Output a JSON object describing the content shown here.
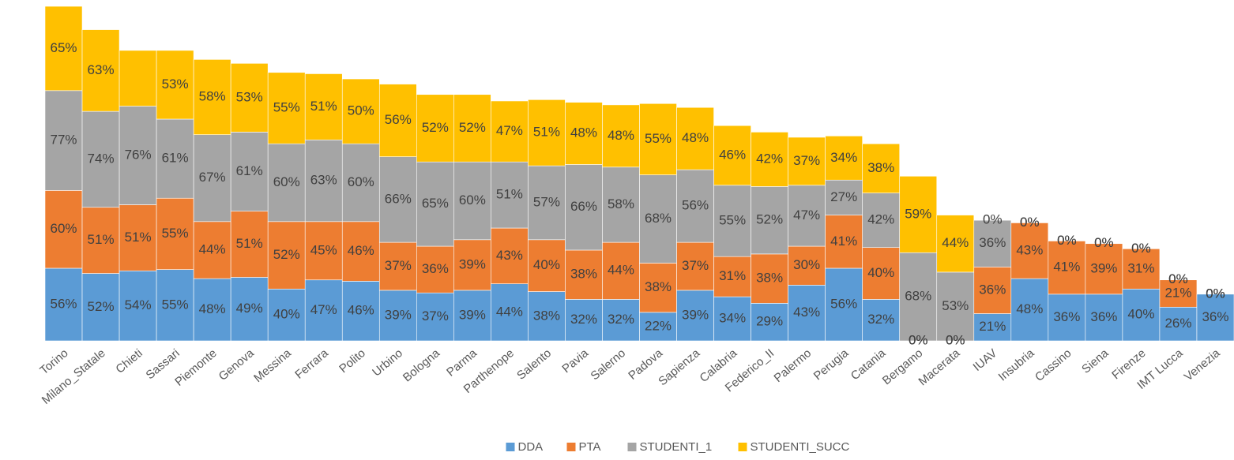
{
  "chart_data": {
    "type": "bar",
    "stacked": true,
    "categories": [
      "Torino",
      "Milano_Statale",
      "Chieti",
      "Sassari",
      "Piemonte",
      "Genova",
      "Messina",
      "Ferrara",
      "Polito",
      "Urbino",
      "Bologna",
      "Parma",
      "Parthenope",
      "Salento",
      "Pavia",
      "Salerno",
      "Padova",
      "Sapienza",
      "Calabria",
      "Federico_II",
      "Palermo",
      "Perugia",
      "Catania",
      "Bergamo",
      "Macerata",
      "IUAV",
      "Insubria",
      "Cassino",
      "Siena",
      "Firenze",
      "IMT Lucca",
      "Venezia"
    ],
    "series": [
      {
        "name": "DDA",
        "color": "#5b9bd5",
        "values": [
          56,
          52,
          54,
          55,
          48,
          49,
          40,
          47,
          46,
          39,
          37,
          39,
          44,
          38,
          32,
          32,
          22,
          39,
          34,
          29,
          43,
          56,
          32,
          0,
          0,
          21,
          48,
          36,
          36,
          40,
          26,
          36
        ],
        "value_labels": [
          "56%",
          "52%",
          "54%",
          "55%",
          "48%",
          "49%",
          "40%",
          "47%",
          "46%",
          "39%",
          "37%",
          "39%",
          "44%",
          "38%",
          "32%",
          "32%",
          "22%",
          "39%",
          "34%",
          "29%",
          "43%",
          "56%",
          "32%",
          "0%",
          "0%",
          "21%",
          "48%",
          "36%",
          "36%",
          "40%",
          "26%",
          "36%"
        ]
      },
      {
        "name": "PTA",
        "color": "#ed7d31",
        "values": [
          60,
          51,
          51,
          55,
          44,
          51,
          52,
          45,
          46,
          37,
          36,
          39,
          43,
          40,
          38,
          44,
          38,
          37,
          31,
          38,
          30,
          41,
          40,
          0,
          0,
          36,
          43,
          41,
          39,
          31,
          21,
          0
        ],
        "value_labels": [
          "60%",
          "51%",
          "51%",
          "55%",
          "44%",
          "51%",
          "52%",
          "45%",
          "46%",
          "37%",
          "36%",
          "39%",
          "43%",
          "40%",
          "38%",
          "44%",
          "38%",
          "37%",
          "31%",
          "38%",
          "30%",
          "41%",
          "40%",
          "0%",
          "0%",
          "36%",
          "43%",
          "41%",
          "39%",
          "31%",
          "21%",
          "0%"
        ]
      },
      {
        "name": "STUDENTI_1",
        "color": "#a5a5a5",
        "values": [
          77,
          74,
          76,
          61,
          67,
          61,
          60,
          63,
          60,
          66,
          65,
          60,
          51,
          57,
          66,
          58,
          68,
          56,
          55,
          52,
          47,
          27,
          42,
          68,
          53,
          36,
          0,
          0,
          0,
          0,
          0,
          0
        ],
        "value_labels": [
          "77%",
          "74%",
          "76%",
          "61%",
          "67%",
          "61%",
          "60%",
          "63%",
          "60%",
          "66%",
          "65%",
          "60%",
          "51%",
          "57%",
          "66%",
          "58%",
          "68%",
          "56%",
          "55%",
          "52%",
          "47%",
          "27%",
          "42%",
          "68%",
          "53%",
          "36%",
          "0%",
          "0%",
          "0%",
          "0%",
          "0%",
          "0%"
        ]
      },
      {
        "name": "STUDENTI_SUCC",
        "color": "#ffc000",
        "values": [
          65,
          63,
          43,
          53,
          58,
          53,
          55,
          51,
          50,
          56,
          52,
          52,
          47,
          51,
          48,
          48,
          55,
          48,
          46,
          42,
          37,
          34,
          38,
          59,
          44,
          0,
          0,
          0,
          0,
          0,
          0,
          0
        ],
        "value_labels": [
          "65%",
          "63%",
          null,
          "53%",
          "58%",
          "53%",
          "55%",
          "51%",
          "50%",
          "56%",
          "52%",
          "52%",
          "47%",
          "51%",
          "48%",
          "48%",
          "55%",
          "48%",
          "46%",
          "42%",
          "37%",
          "34%",
          "38%",
          "59%",
          "44%",
          "0%",
          "0%",
          "0%",
          "0%",
          "0%",
          "0%",
          "0%"
        ]
      }
    ],
    "legend": "bottom"
  }
}
